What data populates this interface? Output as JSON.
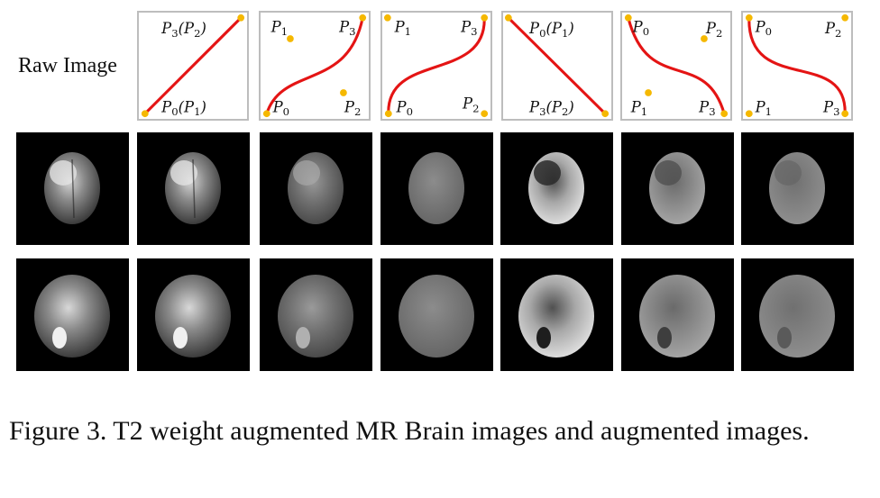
{
  "figure": {
    "row_label": "Raw Image",
    "caption": "Figure 3. T2 weight augmented MR Brain images and augmented images."
  },
  "curves": [
    {
      "curve": "identity",
      "labels": [
        {
          "text": "P",
          "sub": "3",
          "tail": "(P",
          "sub2": "2",
          "end": ")"
        },
        {
          "text": "P",
          "sub": "0",
          "tail": "(P",
          "sub2": "1",
          "end": ")"
        }
      ]
    },
    {
      "curve": "s-rise",
      "labels": [
        {
          "text": "P",
          "sub": "1"
        },
        {
          "text": "P",
          "sub": "3"
        },
        {
          "text": "P",
          "sub": "0"
        },
        {
          "text": "P",
          "sub": "2"
        }
      ]
    },
    {
      "curve": "s-rise-steep",
      "labels": [
        {
          "text": "P",
          "sub": "1"
        },
        {
          "text": "P",
          "sub": "3"
        },
        {
          "text": "P",
          "sub": "0"
        },
        {
          "text": "P",
          "sub": "2"
        }
      ]
    },
    {
      "curve": "inverse",
      "labels": [
        {
          "text": "P",
          "sub": "0",
          "tail": "(P",
          "sub2": "1",
          "end": ")"
        },
        {
          "text": "P",
          "sub": "3",
          "tail": "(P",
          "sub2": "2",
          "end": ")"
        }
      ]
    },
    {
      "curve": "s-fall",
      "labels": [
        {
          "text": "P",
          "sub": "0"
        },
        {
          "text": "P",
          "sub": "2"
        },
        {
          "text": "P",
          "sub": "1"
        },
        {
          "text": "P",
          "sub": "3"
        }
      ]
    },
    {
      "curve": "s-fall-steep",
      "labels": [
        {
          "text": "P",
          "sub": "0"
        },
        {
          "text": "P",
          "sub": "2"
        },
        {
          "text": "P",
          "sub": "1"
        },
        {
          "text": "P",
          "sub": "3"
        }
      ]
    }
  ],
  "colors": {
    "curve": "#e41414",
    "point": "#f5b800",
    "frame": "#bdbdbd"
  }
}
